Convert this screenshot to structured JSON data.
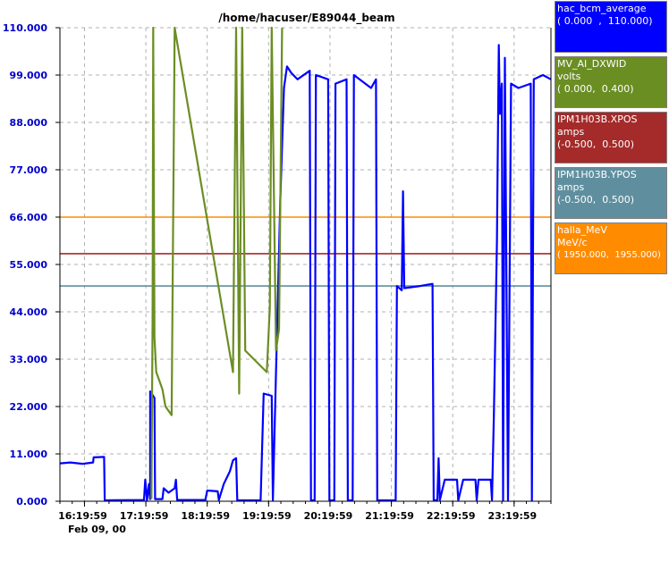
{
  "chart_data": {
    "type": "line",
    "title": "/home/hacuser/E89044_beam",
    "ylim": [
      0,
      110
    ],
    "yticks": [
      "0.000",
      "11.000",
      "22.000",
      "33.000",
      "44.000",
      "55.000",
      "66.000",
      "77.000",
      "88.000",
      "99.000",
      "110.000"
    ],
    "xticks": [
      "16:19:59",
      "17:19:59",
      "18:19:59",
      "19:19:59",
      "20:19:59",
      "21:19:59",
      "22:19:59",
      "23:19:59"
    ],
    "date_label": "Feb 09, 00",
    "grid": true,
    "time_range_hours": [
      15.93,
      23.93
    ],
    "series": [
      {
        "name": "hac_bcm_average",
        "color": "#0000ff",
        "points": [
          [
            15.93,
            8.8
          ],
          [
            16.1,
            9.0
          ],
          [
            16.3,
            8.7
          ],
          [
            16.47,
            9.0
          ],
          [
            16.48,
            10.2
          ],
          [
            16.65,
            10.3
          ],
          [
            16.66,
            0.2
          ],
          [
            17.3,
            0.3
          ],
          [
            17.32,
            5.0
          ],
          [
            17.35,
            0.2
          ],
          [
            17.38,
            4.0
          ],
          [
            17.4,
            0.5
          ],
          [
            17.4,
            25.5
          ],
          [
            17.47,
            24.0
          ],
          [
            17.48,
            0.5
          ],
          [
            17.6,
            0.5
          ],
          [
            17.62,
            3.0
          ],
          [
            17.7,
            2.0
          ],
          [
            17.8,
            3.0
          ],
          [
            17.82,
            5.0
          ],
          [
            17.84,
            0.3
          ],
          [
            18.3,
            0.3
          ],
          [
            18.33,
            2.5
          ],
          [
            18.5,
            2.3
          ],
          [
            18.52,
            0.3
          ],
          [
            18.6,
            4.0
          ],
          [
            18.7,
            7.0
          ],
          [
            18.75,
            9.5
          ],
          [
            18.8,
            10.0
          ],
          [
            18.82,
            0.2
          ],
          [
            19.2,
            0.2
          ],
          [
            19.25,
            25.0
          ],
          [
            19.38,
            24.5
          ],
          [
            19.4,
            0.2
          ],
          [
            19.45,
            30.0
          ],
          [
            19.52,
            70.0
          ],
          [
            19.58,
            96.0
          ],
          [
            19.63,
            101.0
          ],
          [
            19.7,
            99.5
          ],
          [
            19.8,
            98.0
          ],
          [
            20.0,
            100.0
          ],
          [
            20.02,
            0.2
          ],
          [
            20.08,
            0.2
          ],
          [
            20.1,
            99.0
          ],
          [
            20.3,
            98.0
          ],
          [
            20.32,
            0.2
          ],
          [
            20.4,
            0.2
          ],
          [
            20.42,
            97.0
          ],
          [
            20.6,
            98.0
          ],
          [
            20.62,
            0.2
          ],
          [
            20.7,
            0.2
          ],
          [
            20.72,
            99.0
          ],
          [
            21.0,
            96.0
          ],
          [
            21.08,
            98.0
          ],
          [
            21.1,
            0.2
          ],
          [
            21.4,
            0.2
          ],
          [
            21.42,
            50.0
          ],
          [
            21.5,
            49.0
          ],
          [
            21.52,
            72.0
          ],
          [
            21.54,
            49.5
          ],
          [
            21.8,
            50.0
          ],
          [
            22.0,
            50.5
          ],
          [
            22.02,
            0.2
          ],
          [
            22.08,
            0.3
          ],
          [
            22.1,
            10.0
          ],
          [
            22.12,
            0.3
          ],
          [
            22.2,
            5.0
          ],
          [
            22.4,
            5.0
          ],
          [
            22.42,
            0.2
          ],
          [
            22.5,
            5.0
          ],
          [
            22.7,
            5.0
          ],
          [
            22.72,
            0.2
          ],
          [
            22.75,
            5.0
          ],
          [
            22.95,
            5.0
          ],
          [
            22.97,
            0.3
          ],
          [
            23.0,
            20.0
          ],
          [
            23.05,
            60.0
          ],
          [
            23.08,
            106.0
          ],
          [
            23.1,
            90.0
          ],
          [
            23.13,
            97.0
          ],
          [
            23.15,
            0.2
          ],
          [
            23.18,
            103.0
          ],
          [
            23.23,
            0.2
          ],
          [
            23.28,
            97.0
          ],
          [
            23.4,
            96.0
          ],
          [
            23.6,
            97.0
          ],
          [
            23.62,
            0.2
          ],
          [
            23.65,
            98.0
          ],
          [
            23.8,
            99.0
          ],
          [
            23.93,
            98.0
          ]
        ]
      },
      {
        "name": "MV_AI_DXWID",
        "color": "#6b8e23",
        "points": [
          [
            17.42,
            0.5
          ],
          [
            17.44,
            42.0
          ],
          [
            17.45,
            110.0
          ],
          [
            17.47,
            38.0
          ],
          [
            17.5,
            30.0
          ],
          [
            17.55,
            28.0
          ],
          [
            17.6,
            26.0
          ],
          [
            17.65,
            22.0
          ],
          [
            17.7,
            21.0
          ],
          [
            17.75,
            20.0
          ],
          [
            17.8,
            110.0
          ],
          [
            18.75,
            30.0
          ],
          [
            18.8,
            110.0
          ],
          [
            18.85,
            25.0
          ],
          [
            18.9,
            110.0
          ],
          [
            18.95,
            35.0
          ],
          [
            19.3,
            30.0
          ],
          [
            19.35,
            45.0
          ],
          [
            19.38,
            110.0
          ],
          [
            19.45,
            35.0
          ],
          [
            19.5,
            40.0
          ],
          [
            19.55,
            110.0
          ]
        ]
      },
      {
        "name": "IPM1H03B.XPOS",
        "color": "#a52a2a",
        "level": 57.5
      },
      {
        "name": "IPM1H03B.YPOS",
        "color": "#5f8f9f",
        "level": 50.0
      },
      {
        "name": "halla_MeV",
        "color": "#ff8c00",
        "level": 66.0
      }
    ]
  },
  "legend": [
    {
      "name": "hac_bcm_average",
      "unit": "",
      "range": "( 0.000  ,  110.000)",
      "color": "#0000ff",
      "text_color": "#ffffff"
    },
    {
      "name": "MV_AI_DXWID",
      "unit": "volts",
      "range": "( 0.000,  0.400)",
      "color": "#6b8e23",
      "text_color": "#ffffff"
    },
    {
      "name": "IPM1H03B.XPOS",
      "unit": "amps",
      "range": "(-0.500,  0.500)",
      "color": "#a52a2a",
      "text_color": "#ffffff"
    },
    {
      "name": "IPM1H03B.YPOS",
      "unit": "amps",
      "range": "(-0.500,  0.500)",
      "color": "#5f8f9f",
      "text_color": "#ffffff"
    },
    {
      "name": "halla_MeV",
      "unit": "MeV/c",
      "range": "( 1950.000,  1955.000)",
      "color": "#ff8c00",
      "text_color": "#ffffff"
    }
  ]
}
